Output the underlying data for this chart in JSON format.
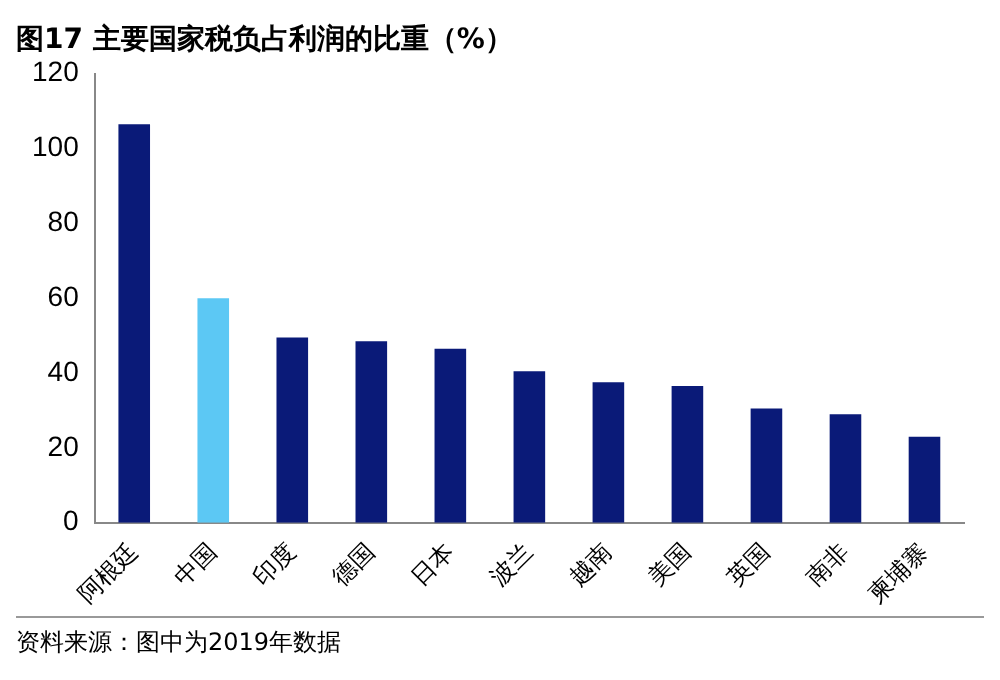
{
  "chart_data": {
    "type": "bar",
    "title": "图17 主要国家税负占利润的比重（%）",
    "categories": [
      "阿根廷",
      "中国",
      "印度",
      "德国",
      "日本",
      "波兰",
      "越南",
      "美国",
      "英国",
      "南非",
      "柬埔寨"
    ],
    "values": [
      106.5,
      60,
      49.5,
      48.5,
      46.5,
      40.5,
      37.5,
      36.5,
      30.5,
      29,
      23
    ],
    "colors": [
      "#0a1a78",
      "#5cc8f4",
      "#0a1a78",
      "#0a1a78",
      "#0a1a78",
      "#0a1a78",
      "#0a1a78",
      "#0a1a78",
      "#0a1a78",
      "#0a1a78",
      "#0a1a78"
    ],
    "ylim": [
      0,
      120
    ],
    "yticks": [
      0,
      20,
      40,
      60,
      80,
      100,
      120
    ],
    "grid": false,
    "legend": false,
    "annotations": [
      "资料来源：图中为2019年数据"
    ]
  }
}
